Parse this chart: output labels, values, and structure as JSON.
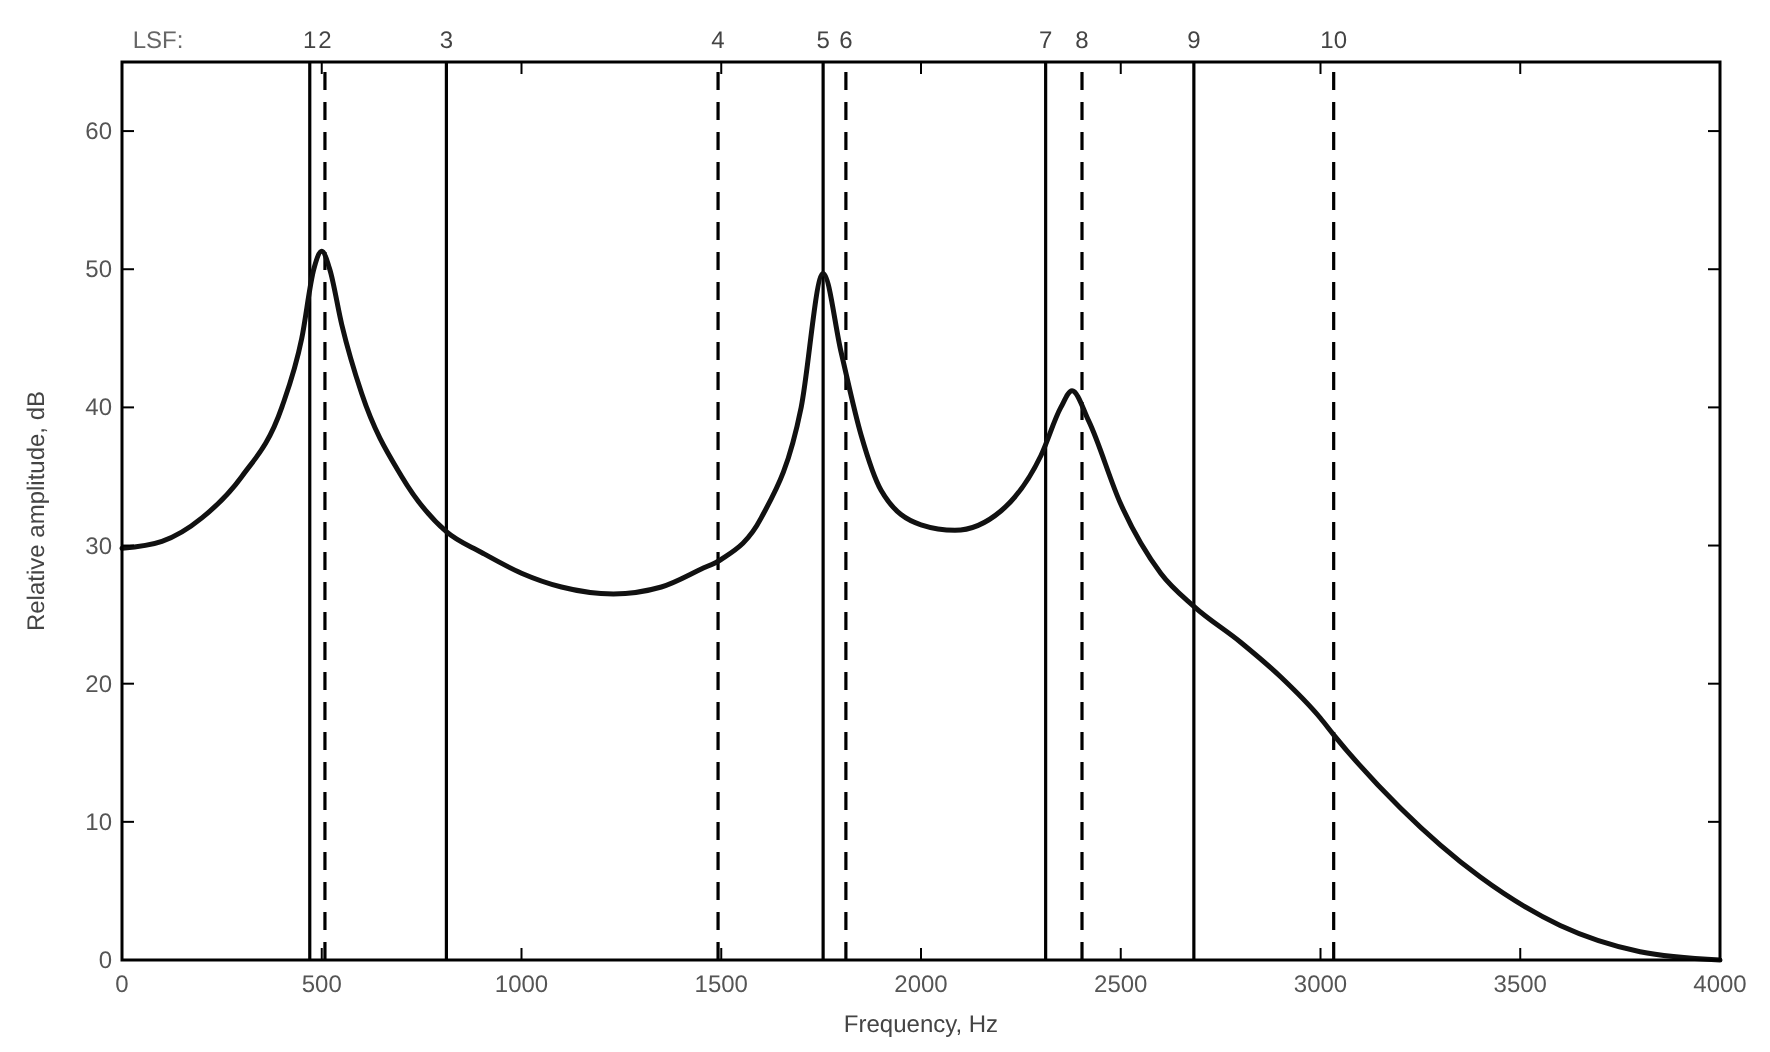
{
  "chart_data": {
    "type": "line",
    "xlabel": "Frequency, Hz",
    "ylabel": "Relative amplitude, dB",
    "x": [
      0,
      100,
      200,
      300,
      400,
      450,
      480,
      500,
      520,
      550,
      600,
      700,
      812,
      900,
      1000,
      1100,
      1230,
      1350,
      1450,
      1500,
      1600,
      1700,
      1755,
      1800,
      1850,
      1900,
      2000,
      2085,
      2200,
      2300,
      2350,
      2378,
      2420,
      2500,
      2600,
      2683,
      2800,
      2900,
      3000,
      3033,
      3200,
      3400,
      3600,
      3800,
      4000
    ],
    "series": [
      {
        "color": "#111111",
        "values": [
          29.8,
          30.3,
          32,
          35,
          40,
          45,
          50,
          51.3,
          50,
          46,
          41,
          35,
          31,
          29.5,
          28,
          27,
          26.5,
          27,
          28.3,
          29,
          32,
          40,
          49.7,
          44,
          38,
          34,
          31.5,
          31.1,
          32.5,
          36.5,
          40,
          41.2,
          39,
          33,
          28,
          25.6,
          23,
          20.5,
          17.5,
          16.3,
          11,
          6,
          2.5,
          0.6,
          0
        ]
      }
    ],
    "xlim": [
      0,
      4000
    ],
    "xticks": [
      0,
      500,
      1000,
      1500,
      2000,
      2500,
      3000,
      3500,
      4000
    ],
    "ylim": [
      0,
      65
    ],
    "yticks": [
      0,
      10,
      20,
      30,
      40,
      50,
      60
    ],
    "grid": false,
    "line_style": "solid",
    "marker": "none",
    "annotations": [
      "LSF:",
      {
        "text": "1",
        "x": 470,
        "y": 65
      },
      {
        "text": "2",
        "x": 508,
        "y": 65
      },
      {
        "text": "3",
        "x": 812,
        "y": 65
      },
      {
        "text": "4",
        "x": 1492,
        "y": 65
      },
      {
        "text": "5",
        "x": 1755,
        "y": 65
      },
      {
        "text": "6",
        "x": 1812,
        "y": 65
      },
      {
        "text": "7",
        "x": 2312,
        "y": 65
      },
      {
        "text": "8",
        "x": 2403,
        "y": 65
      },
      {
        "text": "9",
        "x": 2683,
        "y": 65
      },
      {
        "text": "10",
        "x": 3033,
        "y": 65
      }
    ],
    "ref_lines": [
      {
        "axis": "x",
        "value": 470,
        "line_style": "solid"
      },
      {
        "axis": "x",
        "value": 508,
        "line_style": "dashed"
      },
      {
        "axis": "x",
        "value": 812,
        "line_style": "solid"
      },
      {
        "axis": "x",
        "value": 1492,
        "line_style": "dashed"
      },
      {
        "axis": "x",
        "value": 1755,
        "line_style": "solid"
      },
      {
        "axis": "x",
        "value": 1812,
        "line_style": "dashed"
      },
      {
        "axis": "x",
        "value": 2312,
        "line_style": "solid"
      },
      {
        "axis": "x",
        "value": 2403,
        "line_style": "dashed"
      },
      {
        "axis": "x",
        "value": 2683,
        "line_style": "solid"
      },
      {
        "axis": "x",
        "value": 3033,
        "line_style": "dashed"
      }
    ]
  }
}
